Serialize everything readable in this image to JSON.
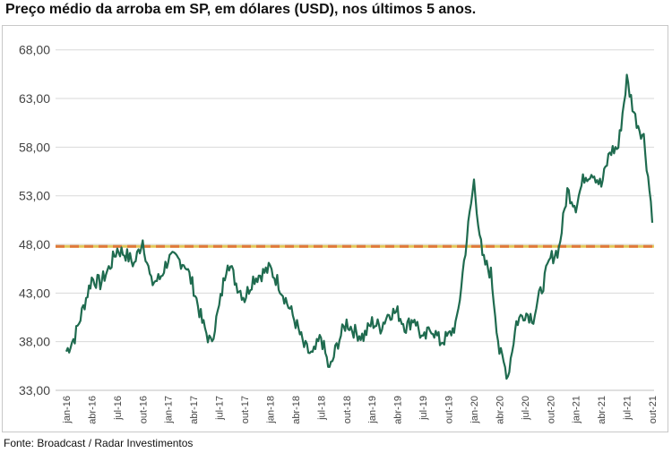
{
  "title": "Preço médio da arroba em SP, em dólares (USD), nos últimos 5 anos.",
  "source": "Fonte: Broadcast / Radar Investimentos",
  "chart_data": {
    "type": "line",
    "title": "Preço médio da arroba em SP, em dólares (USD), nos últimos 5 anos.",
    "xlabel": "",
    "ylabel": "",
    "ylim": [
      33,
      70
    ],
    "yticks": [
      "33,00",
      "38,00",
      "43,00",
      "48,00",
      "53,00",
      "58,00",
      "63,00",
      "68,00"
    ],
    "ytick_values": [
      33,
      38,
      43,
      48,
      53,
      58,
      63,
      68
    ],
    "xticks": [
      "jan-16",
      "abr-16",
      "jul-16",
      "out-16",
      "jan-17",
      "abr-17",
      "jul-17",
      "out-17",
      "jan-18",
      "abr-18",
      "jul-18",
      "out-18",
      "jan-19",
      "abr-19",
      "jul-19",
      "out-19",
      "jan-20",
      "abr-20",
      "jul-20",
      "out-20",
      "jan-21",
      "abr-21",
      "jul-21",
      "out-21"
    ],
    "grid": "horizontal",
    "legend": "none",
    "series": [
      {
        "color": "#1f6b4f",
        "x": [
          "2016-01",
          "2016-02",
          "2016-03",
          "2016-04",
          "2016-05",
          "2016-06",
          "2016-07",
          "2016-08",
          "2016-09",
          "2016-10",
          "2016-11",
          "2016-12",
          "2017-01",
          "2017-02",
          "2017-03",
          "2017-04",
          "2017-05",
          "2017-06",
          "2017-07",
          "2017-08",
          "2017-09",
          "2017-10",
          "2017-11",
          "2017-12",
          "2018-01",
          "2018-02",
          "2018-03",
          "2018-04",
          "2018-05",
          "2018-06",
          "2018-07",
          "2018-08",
          "2018-09",
          "2018-10",
          "2018-11",
          "2018-12",
          "2019-01",
          "2019-02",
          "2019-03",
          "2019-04",
          "2019-05",
          "2019-06",
          "2019-07",
          "2019-08",
          "2019-09",
          "2019-10",
          "2019-11",
          "2019-12",
          "2020-01",
          "2020-02",
          "2020-03",
          "2020-04",
          "2020-05",
          "2020-06",
          "2020-07",
          "2020-08",
          "2020-09",
          "2020-10",
          "2020-11",
          "2020-12",
          "2021-01",
          "2021-02",
          "2021-03",
          "2021-04",
          "2021-05",
          "2021-06",
          "2021-07",
          "2021-08",
          "2021-09",
          "2021-10"
        ],
        "values": [
          37.0,
          38.5,
          41.5,
          44.5,
          44.0,
          45.5,
          47.5,
          47.0,
          46.0,
          48.5,
          44.0,
          44.5,
          46.5,
          46.5,
          46.0,
          43.5,
          40.0,
          37.8,
          41.5,
          46.5,
          44.0,
          42.5,
          44.5,
          45.0,
          45.5,
          44.0,
          42.0,
          40.0,
          37.5,
          36.5,
          38.5,
          35.0,
          38.0,
          40.0,
          39.0,
          38.5,
          40.0,
          39.5,
          41.0,
          41.0,
          39.5,
          40.5,
          38.0,
          39.5,
          38.0,
          38.5,
          40.0,
          47.5,
          54.5,
          46.5,
          45.0,
          37.0,
          34.5,
          40.0,
          41.0,
          40.5,
          43.5,
          46.5,
          47.5,
          53.5,
          52.0,
          55.0,
          55.5,
          54.0,
          57.5,
          58.0,
          65.0,
          61.0,
          59.0,
          51.0
        ]
      }
    ],
    "reference_lines": [
      {
        "value": 47.8,
        "style": "dashed",
        "colors": [
          "#e3c85a",
          "#e0783a"
        ]
      }
    ]
  }
}
